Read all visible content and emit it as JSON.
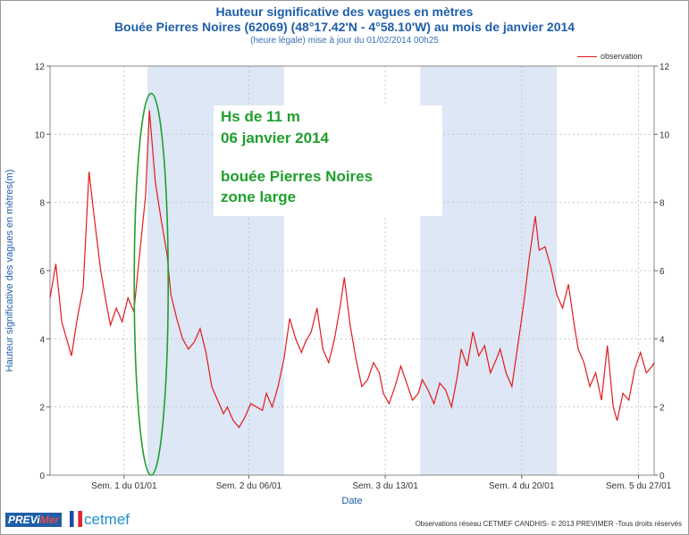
{
  "header": {
    "title_line1": "Hauteur significative des vagues en mètres",
    "title_line2": "Bouée Pierres Noires (62069) (48°17.42'N - 4°58.10'W) au mois de janvier 2014",
    "subtitle": "(heure légale) mise à jour du 01/02/2014 00h25"
  },
  "annotation": {
    "line1": "Hs de 11 m",
    "line2": "06 janvier 2014",
    "line3": "bouée Pierres Noires",
    "line4": "zone large",
    "color": "#1fa02c"
  },
  "footer": {
    "logo_previ": "PREVi",
    "logo_mer": "Mer",
    "logo_cetmef": "cetmef",
    "copyright": "Observations réseau CETMEF CANDHIS- © 2013 PREVIMER -Tous droits réservés"
  },
  "chart_data": {
    "type": "line",
    "xlabel": "Date",
    "ylabel": "Hauteur significative des vagues en mètres(m)",
    "ylim": [
      0,
      12
    ],
    "xlim": [
      0,
      31
    ],
    "x_unit": "days since 2014-01-01",
    "yticks": [
      0,
      2,
      4,
      6,
      8,
      10,
      12
    ],
    "xticks": [
      {
        "x": 3.8,
        "label": "Sem. 1 du 01/01"
      },
      {
        "x": 10.2,
        "label": "Sem. 2 du 06/01"
      },
      {
        "x": 17.2,
        "label": "Sem. 3 du 13/01"
      },
      {
        "x": 24.2,
        "label": "Sem. 4 du 20/01"
      },
      {
        "x": 30.2,
        "label": "Sem. 5 du 27/01"
      }
    ],
    "shaded_bands": [
      [
        5,
        12
      ],
      [
        19,
        26
      ]
    ],
    "band_color": "#dde7f5",
    "grid": true,
    "legend_position": "top-right",
    "series": [
      {
        "name": "observation",
        "color": "#e31a1c",
        "x": [
          0,
          0.3,
          0.6,
          0.9,
          1.1,
          1.4,
          1.7,
          2.0,
          2.3,
          2.6,
          2.9,
          3.1,
          3.4,
          3.7,
          4.0,
          4.3,
          4.6,
          4.9,
          5.1,
          5.4,
          5.7,
          6.0,
          6.2,
          6.5,
          6.8,
          7.1,
          7.4,
          7.7,
          8.0,
          8.3,
          8.6,
          8.9,
          9.1,
          9.4,
          9.7,
          10.0,
          10.3,
          10.6,
          10.9,
          11.1,
          11.4,
          11.7,
          12.0,
          12.3,
          12.6,
          12.9,
          13.1,
          13.4,
          13.7,
          14.0,
          14.3,
          14.6,
          14.9,
          15.1,
          15.4,
          15.7,
          16.0,
          16.3,
          16.6,
          16.9,
          17.1,
          17.4,
          17.7,
          18.0,
          18.3,
          18.6,
          18.9,
          19.1,
          19.4,
          19.7,
          20.0,
          20.3,
          20.6,
          20.9,
          21.1,
          21.4,
          21.7,
          22.0,
          22.3,
          22.6,
          22.9,
          23.1,
          23.4,
          23.7,
          24.0,
          24.3,
          24.6,
          24.9,
          25.1,
          25.4,
          25.7,
          26.0,
          26.3,
          26.6,
          26.9,
          27.1,
          27.4,
          27.7,
          28.0,
          28.3,
          28.6,
          28.9,
          29.1,
          29.4,
          29.7,
          30.0,
          30.3,
          30.6,
          30.9,
          31.0
        ],
        "y": [
          5.2,
          6.2,
          4.5,
          3.9,
          3.5,
          4.6,
          5.5,
          8.9,
          7.4,
          6.0,
          5.0,
          4.4,
          4.9,
          4.5,
          5.2,
          4.8,
          6.5,
          8.2,
          10.7,
          8.6,
          7.5,
          6.5,
          5.3,
          4.6,
          4.0,
          3.7,
          3.9,
          4.3,
          3.6,
          2.6,
          2.2,
          1.8,
          2.0,
          1.6,
          1.4,
          1.7,
          2.1,
          2.0,
          1.9,
          2.4,
          2.0,
          2.6,
          3.4,
          4.6,
          4.0,
          3.6,
          3.9,
          4.2,
          4.9,
          3.7,
          3.3,
          4.0,
          5.0,
          5.8,
          4.4,
          3.4,
          2.6,
          2.8,
          3.3,
          3.0,
          2.4,
          2.1,
          2.6,
          3.2,
          2.7,
          2.2,
          2.4,
          2.8,
          2.5,
          2.1,
          2.7,
          2.5,
          2.0,
          2.9,
          3.7,
          3.2,
          4.2,
          3.5,
          3.8,
          3.0,
          3.4,
          3.7,
          3.0,
          2.6,
          3.8,
          5.0,
          6.4,
          7.6,
          6.6,
          6.7,
          6.1,
          5.3,
          4.9,
          5.6,
          4.4,
          3.7,
          3.3,
          2.6,
          3.0,
          2.2,
          3.8,
          2.0,
          1.6,
          2.4,
          2.2,
          3.1,
          3.6,
          3.0,
          3.2,
          3.3
        ]
      }
    ]
  }
}
